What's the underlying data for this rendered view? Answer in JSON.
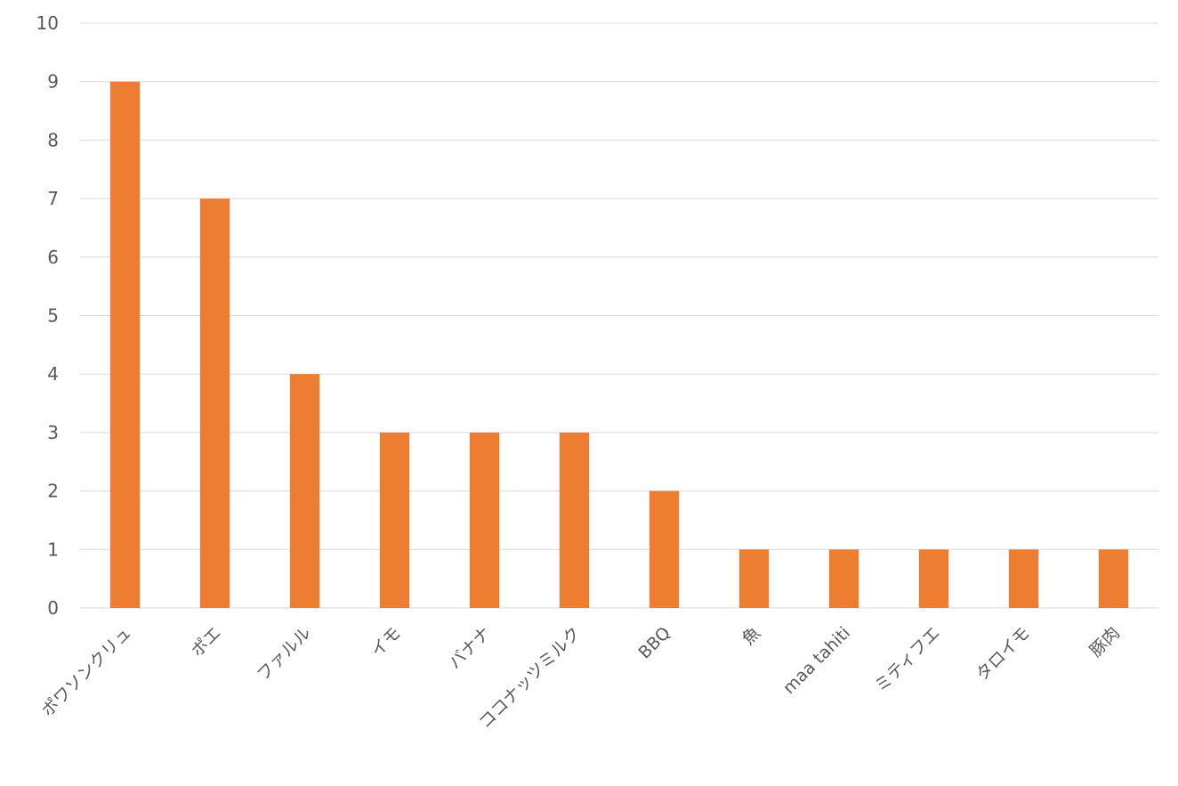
{
  "chart_data": {
    "type": "bar",
    "categories": [
      "ポワソンクリュ",
      "ポエ",
      "ファルル",
      "イモ",
      "バナナ",
      "ココナッツミルク",
      "BBQ",
      "魚",
      "maa tahiti",
      "ミティフエ",
      "タロイモ",
      "豚肉"
    ],
    "values": [
      9,
      7,
      4,
      3,
      3,
      3,
      2,
      1,
      1,
      1,
      1,
      1
    ],
    "ylim": [
      0,
      10
    ],
    "yticks": [
      0,
      1,
      2,
      3,
      4,
      5,
      6,
      7,
      8,
      9,
      10
    ],
    "title": "",
    "xlabel": "",
    "ylabel": "",
    "grid": true,
    "legend": "none",
    "bar_color": "#ED7D31",
    "grid_color": "#D9D9D9",
    "text_color": "#595959"
  }
}
